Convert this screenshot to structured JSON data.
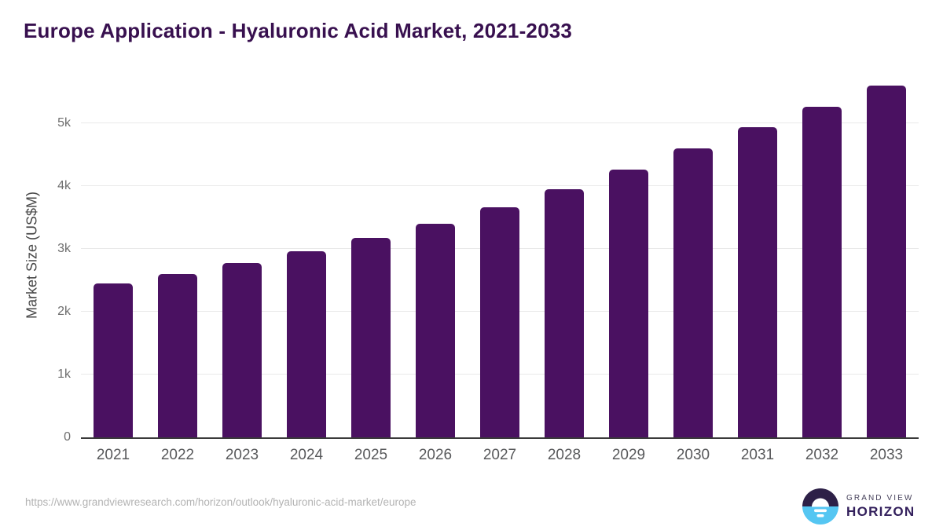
{
  "title": "Europe Application - Hyaluronic Acid Market, 2021-2033",
  "footer": {
    "source_url": "https://www.grandviewresearch.com/horizon/outlook/hyaluronic-acid-market/europe"
  },
  "logo": {
    "icon": "sunrise-horizon-icon",
    "line1": "GRAND VIEW",
    "line2": "HORIZON"
  },
  "colors": {
    "bar": "#4a1161",
    "title_text": "#38104f",
    "gridline": "#e9e9e9",
    "axis_line": "#3a3a3a",
    "y_tick_text": "#6e6e6e",
    "x_tick_text": "#58595b",
    "source_text": "#b3b3b3",
    "logo_dark_purple": "#2d2047",
    "logo_light_blue": "#55c6f2"
  },
  "chart_data": {
    "type": "bar",
    "title": "Europe Application - Hyaluronic Acid Market, 2021-2033",
    "xlabel": "",
    "ylabel": "Market Size (US$M)",
    "categories": [
      "2021",
      "2022",
      "2023",
      "2024",
      "2025",
      "2026",
      "2027",
      "2028",
      "2029",
      "2030",
      "2031",
      "2032",
      "2033"
    ],
    "values": [
      2450,
      2600,
      2780,
      2960,
      3170,
      3400,
      3660,
      3950,
      4260,
      4600,
      4940,
      5260,
      5600
    ],
    "ylim": [
      0,
      5750
    ],
    "yticks": [
      {
        "label": "0",
        "value": 0
      },
      {
        "label": "1k",
        "value": 1000
      },
      {
        "label": "2k",
        "value": 2000
      },
      {
        "label": "3k",
        "value": 3000
      },
      {
        "label": "4k",
        "value": 4000
      },
      {
        "label": "5k",
        "value": 5000
      }
    ],
    "grid": "horizontal",
    "legend": false,
    "bar_color": "#4a1161"
  }
}
